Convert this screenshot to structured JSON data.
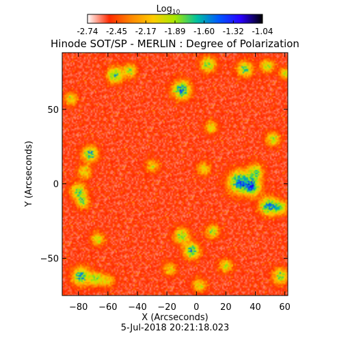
{
  "chart_data": {
    "type": "heatmap",
    "title": "Hinode SOT/SP - MERLIN : Degree of Polarization",
    "xlabel": "X (Arcseconds)",
    "ylabel": "Y (Arcseconds)",
    "xlim": [
      -91,
      62
    ],
    "ylim": [
      -75,
      88
    ],
    "x_ticks": [
      -80,
      -60,
      -40,
      -20,
      0,
      20,
      40,
      60
    ],
    "y_ticks": [
      -50,
      0,
      50
    ],
    "grid": false,
    "colorbar": {
      "label_main": "Log",
      "label_sub": "10",
      "range": [
        -2.74,
        -1.04
      ],
      "ticks": [
        "-2.74",
        "-2.45",
        "-2.17",
        "-1.89",
        "-1.60",
        "-1.32",
        "-1.04"
      ],
      "colors": [
        "#ffffff",
        "#ff2a00",
        "#ff8800",
        "#ffcc00",
        "#a6e800",
        "#00c0a0",
        "#0058ff",
        "#2a00ff",
        "#000000"
      ]
    },
    "field": {
      "background_level": 0.07,
      "blobs": [
        {
          "x": -55,
          "y": 73,
          "level": 0.55,
          "r": 3.5
        },
        {
          "x": -45,
          "y": 76,
          "level": 0.4,
          "r": 3
        },
        {
          "x": -10,
          "y": 63,
          "level": 0.62,
          "r": 4
        },
        {
          "x": 8,
          "y": 80,
          "level": 0.45,
          "r": 3.5
        },
        {
          "x": 33,
          "y": 77,
          "level": 0.45,
          "r": 3.5
        },
        {
          "x": 48,
          "y": 79,
          "level": 0.4,
          "r": 3
        },
        {
          "x": 60,
          "y": 74,
          "level": 0.35,
          "r": 2.5
        },
        {
          "x": -72,
          "y": 20,
          "level": 0.5,
          "r": 3.5
        },
        {
          "x": -76,
          "y": 8,
          "level": 0.35,
          "r": 3
        },
        {
          "x": -80,
          "y": -5,
          "level": 0.45,
          "r": 3.5
        },
        {
          "x": -77,
          "y": -12,
          "level": 0.4,
          "r": 3
        },
        {
          "x": 29,
          "y": 1,
          "level": 0.62,
          "r": 5
        },
        {
          "x": 38,
          "y": -2,
          "level": 0.55,
          "r": 4
        },
        {
          "x": 40,
          "y": 8,
          "level": 0.45,
          "r": 3.5
        },
        {
          "x": 49,
          "y": -15,
          "level": 0.6,
          "r": 4
        },
        {
          "x": 57,
          "y": -16,
          "level": 0.45,
          "r": 3
        },
        {
          "x": -10,
          "y": -35,
          "level": 0.45,
          "r": 3.5
        },
        {
          "x": -3,
          "y": -45,
          "level": 0.55,
          "r": 3.5
        },
        {
          "x": 11,
          "y": -32,
          "level": 0.4,
          "r": 3
        },
        {
          "x": 20,
          "y": -55,
          "level": 0.35,
          "r": 3
        },
        {
          "x": -67,
          "y": -37,
          "level": 0.35,
          "r": 3
        },
        {
          "x": -78,
          "y": -62,
          "level": 0.55,
          "r": 4
        },
        {
          "x": -68,
          "y": -64,
          "level": 0.45,
          "r": 3
        },
        {
          "x": -60,
          "y": -65,
          "level": 0.3,
          "r": 3
        },
        {
          "x": -18,
          "y": -57,
          "level": 0.3,
          "r": 3
        },
        {
          "x": 2,
          "y": -68,
          "level": 0.35,
          "r": 3
        },
        {
          "x": 57,
          "y": -62,
          "level": 0.45,
          "r": 3.5
        },
        {
          "x": 52,
          "y": 30,
          "level": 0.4,
          "r": 3
        },
        {
          "x": 10,
          "y": 38,
          "level": 0.3,
          "r": 3
        },
        {
          "x": -85,
          "y": 57,
          "level": 0.3,
          "r": 3
        },
        {
          "x": -30,
          "y": 12,
          "level": 0.3,
          "r": 3
        },
        {
          "x": 5,
          "y": 10,
          "level": 0.3,
          "r": 3
        }
      ]
    }
  },
  "footer": {
    "date": "5-Jul-2018 20:21:18.023"
  }
}
